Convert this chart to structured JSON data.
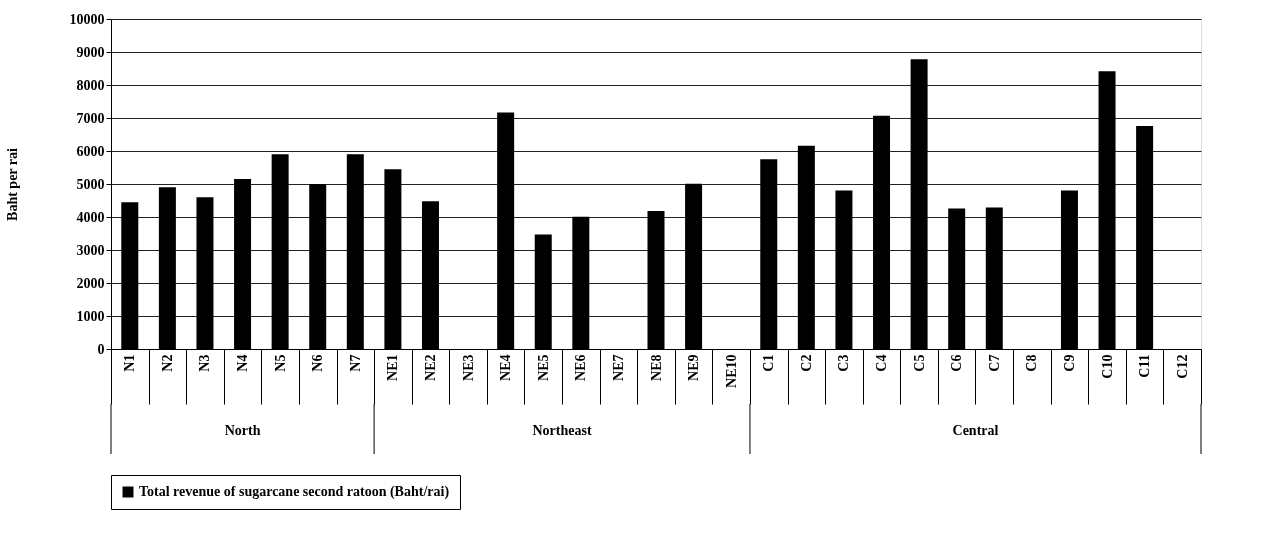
{
  "chart_data": {
    "type": "bar",
    "ylabel": "Baht per rai",
    "categories": [
      "N1",
      "N2",
      "N3",
      "N4",
      "N5",
      "N6",
      "N7",
      "NE1",
      "NE2",
      "NE3",
      "NE4",
      "NE5",
      "NE6",
      "NE7",
      "NE8",
      "NE9",
      "NE10",
      "C1",
      "C2",
      "C3",
      "C4",
      "C5",
      "C6",
      "C7",
      "C8",
      "C9",
      "C10",
      "C11",
      "C12"
    ],
    "series": [
      {
        "name": "Total revenue of sugarcane second ratoon (Baht/rai)",
        "color": "#000000",
        "values": [
          4450,
          4900,
          4600,
          5150,
          5900,
          5000,
          5900,
          5450,
          4480,
          null,
          7170,
          3470,
          4010,
          null,
          4180,
          5010,
          null,
          5750,
          6160,
          4800,
          7070,
          8780,
          4260,
          4290,
          null,
          4800,
          8420,
          6760,
          null
        ]
      }
    ],
    "ylim": [
      0,
      10000
    ],
    "yticks": [
      0,
      1000,
      2000,
      3000,
      4000,
      5000,
      6000,
      7000,
      8000,
      9000,
      10000
    ],
    "grid": "y",
    "legend": "bottom",
    "annotations": [
      "North",
      "Northeast",
      "Central"
    ]
  }
}
